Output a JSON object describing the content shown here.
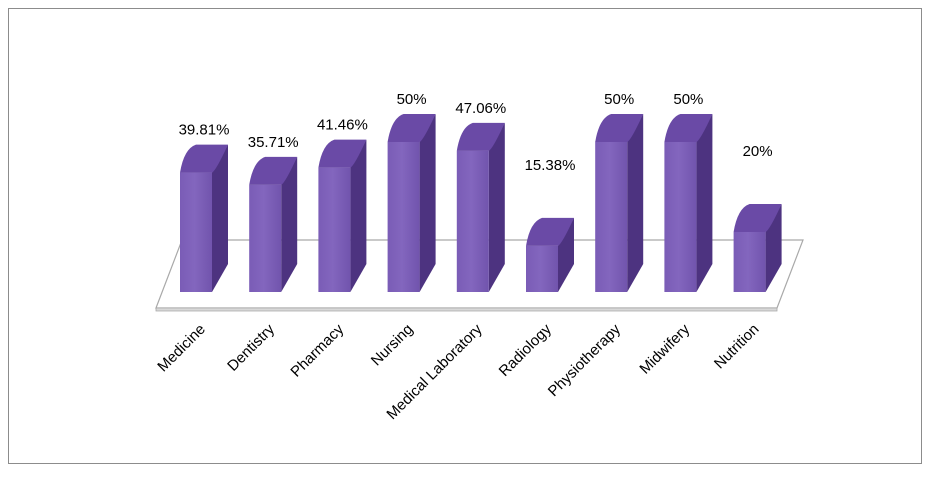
{
  "colors": {
    "bar_front": "#8366be",
    "bar_side": "#4d3380",
    "bar_top": "#6a4aa6",
    "floor": "#ffffff",
    "floor_stroke": "#a9a9a9",
    "frame": "#8c8c8c",
    "text": "#000000"
  },
  "chart_data": {
    "type": "bar",
    "title": "",
    "xlabel": "",
    "ylabel": "",
    "ylim": [
      0,
      60
    ],
    "grid": false,
    "legend": "none",
    "categories": [
      "Medicine",
      "Dentistry",
      "Pharmacy",
      "Nursing",
      "Medical Laboratory",
      "Radiology",
      "Physiotherapy",
      "Midwifery",
      "Nutrition"
    ],
    "values": [
      39.81,
      35.71,
      41.46,
      50,
      47.06,
      15.38,
      50,
      50,
      20
    ],
    "value_labels": [
      "39.81%",
      "35.71%",
      "41.46%",
      "50%",
      "47.06%",
      "15.38%",
      "50%",
      "50%",
      "20%"
    ]
  }
}
